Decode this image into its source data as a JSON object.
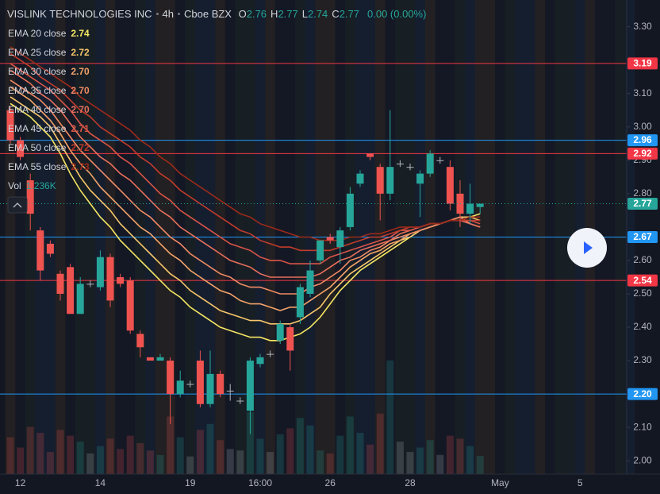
{
  "chart_data": {
    "type": "candlestick",
    "title": "VISLINK TECHNOLOGIES INC",
    "interval": "4h",
    "exchange": "Cboe BZX",
    "ohlc_letters": [
      "O",
      "H",
      "L",
      "C"
    ],
    "change_label": "0.00 (0.00%)",
    "up_color": "#26a69a",
    "down_color": "#ef5350",
    "flat_color": "#b2b5be",
    "categories": [
      null,
      "12",
      null,
      null,
      null,
      null,
      null,
      null,
      null,
      "14",
      null,
      null,
      null,
      null,
      null,
      null,
      null,
      null,
      "19",
      null,
      null,
      null,
      null,
      null,
      null,
      "16:00",
      null,
      null,
      null,
      null,
      null,
      null,
      "26",
      null,
      null,
      null,
      null,
      null,
      null,
      null,
      "28",
      null,
      null,
      null,
      null,
      null,
      null,
      null,
      null,
      "May",
      null,
      null,
      null,
      null,
      null,
      null,
      null,
      "5"
    ],
    "open": [
      3.05,
      2.96,
      2.84,
      2.69,
      2.65,
      2.56,
      2.58,
      2.44,
      2.53,
      2.52,
      2.61,
      2.55,
      2.54,
      2.38,
      2.31,
      2.3,
      2.3,
      2.2,
      2.23,
      2.3,
      2.17,
      2.26,
      2.21,
      2.18,
      2.15,
      2.29,
      2.32,
      2.36,
      2.4,
      2.43,
      2.5,
      2.6,
      2.67,
      2.64,
      2.7,
      2.83,
      2.92,
      2.88,
      2.8,
      2.89,
      2.88,
      2.83,
      2.86,
      2.9,
      2.88,
      2.8,
      2.74,
      2.76,
      null,
      null,
      null,
      null,
      null,
      null,
      null,
      null,
      null,
      null
    ],
    "high": [
      3.06,
      2.97,
      2.86,
      2.7,
      2.66,
      2.57,
      2.59,
      2.55,
      2.54,
      2.63,
      2.62,
      2.56,
      2.55,
      2.39,
      2.31,
      2.32,
      2.31,
      2.27,
      2.24,
      2.33,
      2.33,
      2.27,
      2.23,
      2.19,
      2.31,
      2.32,
      2.33,
      2.42,
      2.41,
      2.53,
      2.6,
      2.66,
      2.68,
      2.7,
      2.82,
      2.87,
      2.92,
      2.89,
      3.05,
      2.9,
      2.89,
      2.87,
      2.93,
      2.91,
      2.9,
      2.84,
      2.83,
      2.77,
      null,
      null,
      null,
      null,
      null,
      null,
      null,
      null,
      null,
      null
    ],
    "low": [
      2.95,
      2.9,
      2.69,
      2.54,
      2.61,
      2.48,
      2.44,
      2.44,
      2.52,
      2.51,
      2.46,
      2.52,
      2.38,
      2.31,
      2.3,
      2.3,
      2.11,
      2.19,
      2.22,
      2.16,
      2.16,
      2.19,
      2.18,
      2.17,
      2.08,
      2.28,
      2.31,
      2.35,
      2.27,
      2.41,
      2.49,
      2.59,
      2.65,
      2.59,
      2.69,
      2.82,
      2.9,
      2.72,
      2.78,
      2.88,
      2.87,
      2.73,
      2.85,
      2.89,
      2.75,
      2.7,
      2.71,
      2.74,
      null,
      null,
      null,
      null,
      null,
      null,
      null,
      null,
      null,
      null
    ],
    "close": [
      2.96,
      2.91,
      2.74,
      2.57,
      2.62,
      2.5,
      2.44,
      2.53,
      2.53,
      2.61,
      2.48,
      2.53,
      2.39,
      2.34,
      2.3,
      2.31,
      2.2,
      2.24,
      2.23,
      2.17,
      2.26,
      2.2,
      2.21,
      2.18,
      2.3,
      2.31,
      2.32,
      2.41,
      2.33,
      2.52,
      2.57,
      2.66,
      2.66,
      2.69,
      2.8,
      2.86,
      2.91,
      2.8,
      2.88,
      2.89,
      2.88,
      2.86,
      2.92,
      2.9,
      2.77,
      2.74,
      2.77,
      2.77,
      null,
      null,
      null,
      null,
      null,
      null,
      null,
      null,
      null,
      null
    ],
    "volume_name": "Vol",
    "volume": [
      2500,
      1800,
      3200,
      2800,
      1500,
      3000,
      2600,
      2200,
      1400,
      1900,
      2400,
      1700,
      2600,
      2100,
      1600,
      1300,
      3900,
      2500,
      1200,
      3000,
      3400,
      2300,
      1700,
      1600,
      4200,
      2400,
      1500,
      2700,
      3100,
      3800,
      3300,
      1600,
      1400,
      2600,
      3900,
      2800,
      2000,
      4100,
      7700,
      2200,
      1500,
      1800,
      2300,
      1300,
      2600,
      2400,
      1900,
      1236,
      null,
      null,
      null,
      null,
      null,
      null,
      null,
      null,
      null,
      null
    ],
    "volume_last_label": "1.236K",
    "volume_lim": [
      0,
      10000
    ],
    "series": [
      {
        "name": "EMA 20 close",
        "color": "#f5e663",
        "last_label": "2.74",
        "values": [
          3.07,
          3.05,
          3.03,
          3.0,
          2.97,
          2.92,
          2.86,
          2.81,
          2.77,
          2.73,
          2.7,
          2.66,
          2.63,
          2.6,
          2.57,
          2.54,
          2.51,
          2.49,
          2.46,
          2.44,
          2.42,
          2.4,
          2.39,
          2.38,
          2.37,
          2.37,
          2.36,
          2.36,
          2.37,
          2.38,
          2.4,
          2.43,
          2.47,
          2.51,
          2.54,
          2.57,
          2.59,
          2.61,
          2.63,
          2.65,
          2.67,
          2.69,
          2.7,
          2.71,
          2.72,
          2.73,
          2.73,
          2.74,
          null,
          null,
          null,
          null,
          null,
          null,
          null,
          null,
          null,
          null
        ]
      },
      {
        "name": "EMA 25 close",
        "color": "#f7c66b",
        "last_label": "2.72",
        "values": [
          3.09,
          3.07,
          3.05,
          3.03,
          3.0,
          2.95,
          2.9,
          2.85,
          2.81,
          2.78,
          2.75,
          2.71,
          2.68,
          2.65,
          2.62,
          2.59,
          2.56,
          2.54,
          2.51,
          2.49,
          2.47,
          2.45,
          2.44,
          2.43,
          2.42,
          2.42,
          2.41,
          2.41,
          2.41,
          2.42,
          2.44,
          2.46,
          2.5,
          2.53,
          2.56,
          2.58,
          2.6,
          2.62,
          2.64,
          2.66,
          2.67,
          2.69,
          2.7,
          2.71,
          2.72,
          2.73,
          2.73,
          2.72,
          null,
          null,
          null,
          null,
          null,
          null,
          null,
          null,
          null,
          null
        ]
      },
      {
        "name": "EMA 30 close",
        "color": "#f4a36a",
        "last_label": "2.70",
        "values": [
          3.12,
          3.1,
          3.08,
          3.05,
          3.02,
          2.98,
          2.93,
          2.89,
          2.86,
          2.82,
          2.79,
          2.76,
          2.73,
          2.7,
          2.68,
          2.65,
          2.62,
          2.6,
          2.57,
          2.55,
          2.53,
          2.51,
          2.5,
          2.48,
          2.47,
          2.47,
          2.46,
          2.45,
          2.46,
          2.46,
          2.48,
          2.5,
          2.52,
          2.55,
          2.58,
          2.6,
          2.62,
          2.63,
          2.65,
          2.66,
          2.68,
          2.69,
          2.7,
          2.71,
          2.72,
          2.73,
          2.71,
          2.7,
          null,
          null,
          null,
          null,
          null,
          null,
          null,
          null,
          null,
          null
        ]
      },
      {
        "name": "EMA 35 close",
        "color": "#f08a65",
        "last_label": "2.70",
        "values": [
          3.14,
          3.12,
          3.1,
          3.08,
          3.05,
          3.01,
          2.97,
          2.93,
          2.9,
          2.87,
          2.84,
          2.81,
          2.78,
          2.75,
          2.73,
          2.7,
          2.67,
          2.65,
          2.62,
          2.6,
          2.58,
          2.56,
          2.55,
          2.53,
          2.52,
          2.52,
          2.51,
          2.5,
          2.5,
          2.5,
          2.52,
          2.53,
          2.55,
          2.57,
          2.6,
          2.61,
          2.63,
          2.64,
          2.66,
          2.67,
          2.68,
          2.69,
          2.7,
          2.71,
          2.72,
          2.73,
          2.71,
          2.7,
          null,
          null,
          null,
          null,
          null,
          null,
          null,
          null,
          null,
          null
        ]
      },
      {
        "name": "EMA 40 close",
        "color": "#e96f5c",
        "last_label": "2.70",
        "values": [
          3.17,
          3.15,
          3.13,
          3.1,
          3.08,
          3.05,
          3.01,
          2.97,
          2.94,
          2.91,
          2.89,
          2.86,
          2.84,
          2.81,
          2.78,
          2.75,
          2.73,
          2.7,
          2.68,
          2.66,
          2.64,
          2.62,
          2.6,
          2.59,
          2.58,
          2.56,
          2.55,
          2.55,
          2.55,
          2.55,
          2.55,
          2.56,
          2.58,
          2.6,
          2.61,
          2.63,
          2.64,
          2.65,
          2.66,
          2.68,
          2.69,
          2.7,
          2.71,
          2.71,
          2.72,
          2.72,
          2.71,
          2.7,
          null,
          null,
          null,
          null,
          null,
          null,
          null,
          null,
          null,
          null
        ]
      },
      {
        "name": "EMA 45 close",
        "color": "#d95448",
        "last_label": "2.71",
        "values": [
          3.19,
          3.17,
          3.15,
          3.13,
          3.11,
          3.08,
          3.05,
          3.01,
          2.98,
          2.96,
          2.94,
          2.91,
          2.89,
          2.86,
          2.83,
          2.8,
          2.78,
          2.75,
          2.73,
          2.71,
          2.69,
          2.67,
          2.65,
          2.64,
          2.63,
          2.61,
          2.6,
          2.6,
          2.59,
          2.59,
          2.59,
          2.59,
          2.61,
          2.62,
          2.63,
          2.64,
          2.65,
          2.66,
          2.67,
          2.69,
          2.69,
          2.7,
          2.71,
          2.71,
          2.72,
          2.72,
          2.72,
          2.71,
          null,
          null,
          null,
          null,
          null,
          null,
          null,
          null,
          null,
          null
        ]
      },
      {
        "name": "EMA 50 close",
        "color": "#c13b2c",
        "last_label": "2.72",
        "values": [
          3.22,
          3.2,
          3.18,
          3.15,
          3.13,
          3.11,
          3.08,
          3.05,
          3.03,
          3.0,
          2.98,
          2.96,
          2.94,
          2.91,
          2.89,
          2.86,
          2.84,
          2.81,
          2.79,
          2.77,
          2.75,
          2.73,
          2.71,
          2.69,
          2.68,
          2.66,
          2.65,
          2.64,
          2.64,
          2.63,
          2.63,
          2.63,
          2.63,
          2.64,
          2.65,
          2.66,
          2.67,
          2.67,
          2.68,
          2.69,
          2.7,
          2.7,
          2.71,
          2.71,
          2.72,
          2.72,
          2.72,
          2.72,
          null,
          null,
          null,
          null,
          null,
          null,
          null,
          null,
          null,
          null
        ]
      },
      {
        "name": "EMA 55 close",
        "color": "#9c2a1a",
        "last_label": "2.73",
        "values": [
          3.24,
          3.22,
          3.2,
          3.18,
          3.16,
          3.14,
          3.12,
          3.09,
          3.07,
          3.05,
          3.03,
          3.01,
          2.99,
          2.96,
          2.94,
          2.91,
          2.89,
          2.86,
          2.84,
          2.82,
          2.8,
          2.78,
          2.76,
          2.74,
          2.73,
          2.71,
          2.7,
          2.69,
          2.68,
          2.67,
          2.67,
          2.66,
          2.66,
          2.66,
          2.67,
          2.67,
          2.68,
          2.68,
          2.69,
          2.7,
          2.7,
          2.7,
          2.71,
          2.71,
          2.72,
          2.72,
          2.73,
          2.73,
          null,
          null,
          null,
          null,
          null,
          null,
          null,
          null,
          null,
          null
        ]
      }
    ],
    "hlines": [
      {
        "value": 3.19,
        "label": "3.19",
        "color": "#f23645"
      },
      {
        "value": 2.96,
        "label": "2.96",
        "color": "#2196f3"
      },
      {
        "value": 2.92,
        "label": "2.92",
        "color": "#f23645"
      },
      {
        "value": 2.67,
        "label": "2.67",
        "color": "#2196f3"
      },
      {
        "value": 2.54,
        "label": "2.54",
        "color": "#f23645"
      },
      {
        "value": 2.2,
        "label": "2.20",
        "color": "#2196f3"
      }
    ],
    "ylim": [
      1.96,
      3.38
    ],
    "yticks": [
      {
        "value": 3.3,
        "label": "3.30"
      },
      {
        "value": 3.1,
        "label": "3.10"
      },
      {
        "value": 3.0,
        "label": "3.00"
      },
      {
        "value": 2.9,
        "label": "2.90"
      },
      {
        "value": 2.8,
        "label": "2.80"
      },
      {
        "value": 2.6,
        "label": "2.60"
      },
      {
        "value": 2.5,
        "label": "2.50"
      },
      {
        "value": 2.4,
        "label": "2.40"
      },
      {
        "value": 2.3,
        "label": "2.30"
      },
      {
        "value": 2.1,
        "label": "2.10"
      },
      {
        "value": 2.0,
        "label": "2.00"
      }
    ],
    "grid": false
  }
}
